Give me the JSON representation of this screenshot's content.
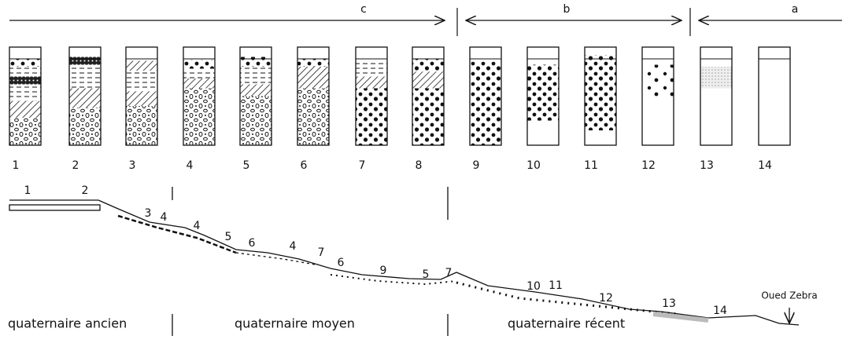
{
  "brackets": [
    {
      "label": "c"
    },
    {
      "label": "b"
    },
    {
      "label": "a"
    }
  ],
  "columns": [
    "1",
    "2",
    "3",
    "4",
    "5",
    "6",
    "7",
    "8",
    "9",
    "10",
    "11",
    "12",
    "13",
    "14"
  ],
  "profile_labels": [
    "1",
    "2",
    "3",
    "4",
    "4",
    "5",
    "6",
    "4",
    "7",
    "6",
    "9",
    "5",
    "7",
    "10",
    "11",
    "12",
    "13",
    "14"
  ],
  "outlet": "Oued Zebra",
  "zones": [
    "quaternaire ancien",
    "quaternaire moyen",
    "quaternaire récent"
  ]
}
